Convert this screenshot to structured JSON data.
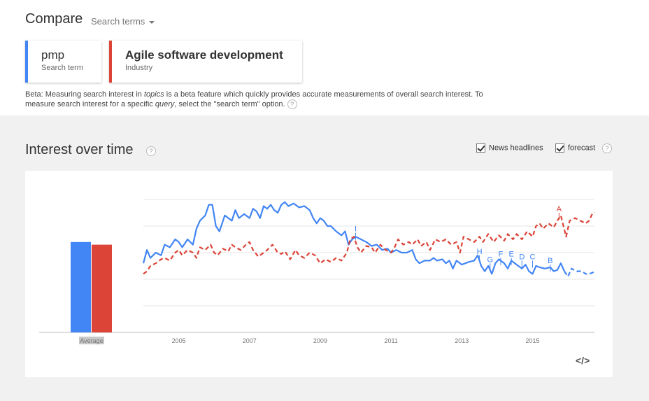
{
  "header": {
    "title": "Compare",
    "search_terms_label": "Search terms"
  },
  "terms": [
    {
      "name": "pmp",
      "type": "Search term",
      "color": "#4285f4"
    },
    {
      "name": "Agile software development",
      "type": "Industry",
      "color": "#db4437"
    }
  ],
  "beta_note": {
    "part1": "Beta: Measuring search interest in ",
    "em1": "topics",
    "part2": " is a beta feature which quickly provides accurate measurements of overall search interest. To measure search interest for a specific ",
    "em2": "query",
    "part3": ", select the \"search term\" option."
  },
  "section": {
    "title": "Interest over time",
    "news_headlines_label": "News headlines",
    "news_headlines_checked": true,
    "forecast_label": "forecast",
    "forecast_checked": true,
    "help_glyph": "?"
  },
  "chart_data": {
    "type": "line",
    "x_range": [
      2004.0,
      2016.75
    ],
    "y_range": [
      0,
      100
    ],
    "x_ticks": [
      "2005",
      "2007",
      "2009",
      "2011",
      "2013",
      "2015"
    ],
    "average": {
      "label": "Average",
      "values": [
        68,
        66
      ]
    },
    "series": [
      {
        "color": "#4285f4",
        "forecast_from": 2015.9,
        "points": [
          [
            2004.0,
            52
          ],
          [
            2004.1,
            62
          ],
          [
            2004.2,
            56
          ],
          [
            2004.35,
            60
          ],
          [
            2004.5,
            58
          ],
          [
            2004.6,
            66
          ],
          [
            2004.75,
            64
          ],
          [
            2004.9,
            70
          ],
          [
            2005.0,
            68
          ],
          [
            2005.1,
            64
          ],
          [
            2005.25,
            70
          ],
          [
            2005.4,
            66
          ],
          [
            2005.5,
            78
          ],
          [
            2005.6,
            84
          ],
          [
            2005.75,
            88
          ],
          [
            2005.85,
            96
          ],
          [
            2005.95,
            96
          ],
          [
            2006.05,
            80
          ],
          [
            2006.15,
            76
          ],
          [
            2006.3,
            88
          ],
          [
            2006.4,
            86
          ],
          [
            2006.5,
            84
          ],
          [
            2006.6,
            92
          ],
          [
            2006.7,
            86
          ],
          [
            2006.85,
            89
          ],
          [
            2007.0,
            86
          ],
          [
            2007.1,
            93
          ],
          [
            2007.2,
            91
          ],
          [
            2007.3,
            86
          ],
          [
            2007.4,
            95
          ],
          [
            2007.5,
            93
          ],
          [
            2007.6,
            96
          ],
          [
            2007.7,
            92
          ],
          [
            2007.8,
            90
          ],
          [
            2007.9,
            96
          ],
          [
            2008.0,
            98
          ],
          [
            2008.1,
            95
          ],
          [
            2008.25,
            97
          ],
          [
            2008.4,
            94
          ],
          [
            2008.55,
            95
          ],
          [
            2008.7,
            92
          ],
          [
            2008.8,
            86
          ],
          [
            2008.9,
            82
          ],
          [
            2009.0,
            86
          ],
          [
            2009.1,
            84
          ],
          [
            2009.2,
            80
          ],
          [
            2009.3,
            80
          ],
          [
            2009.45,
            76
          ],
          [
            2009.6,
            73
          ],
          [
            2009.7,
            76
          ],
          [
            2009.8,
            66
          ],
          [
            2009.9,
            70
          ],
          [
            2010.0,
            72
          ],
          [
            2010.15,
            70
          ],
          [
            2010.3,
            68
          ],
          [
            2010.45,
            65
          ],
          [
            2010.6,
            66
          ],
          [
            2010.75,
            62
          ],
          [
            2010.9,
            63
          ],
          [
            2011.0,
            60
          ],
          [
            2011.15,
            62
          ],
          [
            2011.3,
            60
          ],
          [
            2011.45,
            60
          ],
          [
            2011.6,
            62
          ],
          [
            2011.7,
            55
          ],
          [
            2011.8,
            52
          ],
          [
            2011.95,
            54
          ],
          [
            2012.1,
            54
          ],
          [
            2012.2,
            56
          ],
          [
            2012.3,
            54
          ],
          [
            2012.45,
            55
          ],
          [
            2012.55,
            52
          ],
          [
            2012.65,
            54
          ],
          [
            2012.75,
            48
          ],
          [
            2012.85,
            54
          ],
          [
            2013.0,
            51
          ],
          [
            2013.1,
            52
          ],
          [
            2013.2,
            53
          ],
          [
            2013.35,
            54
          ],
          [
            2013.45,
            58
          ],
          [
            2013.55,
            50
          ],
          [
            2013.65,
            46
          ],
          [
            2013.75,
            50
          ],
          [
            2013.85,
            44
          ],
          [
            2013.95,
            52
          ],
          [
            2014.05,
            55
          ],
          [
            2014.2,
            52
          ],
          [
            2014.3,
            48
          ],
          [
            2014.4,
            54
          ],
          [
            2014.5,
            52
          ],
          [
            2014.6,
            50
          ],
          [
            2014.7,
            48
          ],
          [
            2014.8,
            51
          ],
          [
            2014.9,
            46
          ],
          [
            2015.0,
            44
          ],
          [
            2015.1,
            50
          ],
          [
            2015.2,
            49
          ],
          [
            2015.35,
            48
          ],
          [
            2015.5,
            49
          ],
          [
            2015.6,
            46
          ],
          [
            2015.7,
            47
          ],
          [
            2015.8,
            52
          ],
          [
            2015.9,
            46
          ],
          [
            2016.0,
            42
          ],
          [
            2016.1,
            48
          ],
          [
            2016.25,
            46
          ],
          [
            2016.4,
            46
          ],
          [
            2016.5,
            44
          ],
          [
            2016.6,
            44
          ],
          [
            2016.7,
            45
          ],
          [
            2016.75,
            46
          ]
        ]
      },
      {
        "color": "#db4437",
        "forecast_from": 2004.0,
        "points": [
          [
            2004.0,
            44
          ],
          [
            2004.1,
            46
          ],
          [
            2004.2,
            50
          ],
          [
            2004.35,
            52
          ],
          [
            2004.5,
            55
          ],
          [
            2004.6,
            56
          ],
          [
            2004.75,
            54
          ],
          [
            2004.9,
            60
          ],
          [
            2005.0,
            62
          ],
          [
            2005.1,
            58
          ],
          [
            2005.25,
            62
          ],
          [
            2005.4,
            60
          ],
          [
            2005.5,
            56
          ],
          [
            2005.6,
            64
          ],
          [
            2005.75,
            62
          ],
          [
            2005.9,
            66
          ],
          [
            2006.0,
            60
          ],
          [
            2006.1,
            58
          ],
          [
            2006.25,
            63
          ],
          [
            2006.4,
            61
          ],
          [
            2006.5,
            66
          ],
          [
            2006.6,
            64
          ],
          [
            2006.75,
            62
          ],
          [
            2006.9,
            66
          ],
          [
            2007.0,
            68
          ],
          [
            2007.1,
            62
          ],
          [
            2007.25,
            57
          ],
          [
            2007.4,
            60
          ],
          [
            2007.5,
            62
          ],
          [
            2007.65,
            66
          ],
          [
            2007.8,
            60
          ],
          [
            2007.9,
            59
          ],
          [
            2008.0,
            61
          ],
          [
            2008.15,
            55
          ],
          [
            2008.3,
            62
          ],
          [
            2008.4,
            58
          ],
          [
            2008.55,
            56
          ],
          [
            2008.7,
            60
          ],
          [
            2008.85,
            58
          ],
          [
            2009.0,
            52
          ],
          [
            2009.15,
            55
          ],
          [
            2009.3,
            53
          ],
          [
            2009.45,
            56
          ],
          [
            2009.6,
            54
          ],
          [
            2009.75,
            60
          ],
          [
            2009.85,
            70
          ],
          [
            2009.95,
            72
          ],
          [
            2010.05,
            64
          ],
          [
            2010.15,
            60
          ],
          [
            2010.3,
            65
          ],
          [
            2010.45,
            64
          ],
          [
            2010.55,
            60
          ],
          [
            2010.7,
            66
          ],
          [
            2010.85,
            62
          ],
          [
            2011.0,
            60
          ],
          [
            2011.1,
            64
          ],
          [
            2011.2,
            70
          ],
          [
            2011.35,
            66
          ],
          [
            2011.5,
            68
          ],
          [
            2011.6,
            66
          ],
          [
            2011.75,
            70
          ],
          [
            2011.85,
            65
          ],
          [
            2012.0,
            68
          ],
          [
            2012.1,
            62
          ],
          [
            2012.25,
            70
          ],
          [
            2012.4,
            68
          ],
          [
            2012.55,
            70
          ],
          [
            2012.7,
            66
          ],
          [
            2012.85,
            68
          ],
          [
            2012.95,
            60
          ],
          [
            2013.05,
            72
          ],
          [
            2013.2,
            70
          ],
          [
            2013.35,
            68
          ],
          [
            2013.5,
            72
          ],
          [
            2013.6,
            68
          ],
          [
            2013.75,
            74
          ],
          [
            2013.9,
            68
          ],
          [
            2014.05,
            73
          ],
          [
            2014.2,
            69
          ],
          [
            2014.3,
            74
          ],
          [
            2014.45,
            70
          ],
          [
            2014.55,
            74
          ],
          [
            2014.7,
            70
          ],
          [
            2014.85,
            76
          ],
          [
            2015.0,
            72
          ],
          [
            2015.1,
            80
          ],
          [
            2015.2,
            82
          ],
          [
            2015.3,
            78
          ],
          [
            2015.45,
            82
          ],
          [
            2015.6,
            79
          ],
          [
            2015.7,
            84
          ],
          [
            2015.8,
            88
          ],
          [
            2015.95,
            72
          ],
          [
            2016.05,
            84
          ],
          [
            2016.2,
            86
          ],
          [
            2016.35,
            84
          ],
          [
            2016.5,
            82
          ],
          [
            2016.6,
            84
          ],
          [
            2016.7,
            90
          ],
          [
            2016.75,
            90
          ]
        ]
      }
    ],
    "annotations": [
      {
        "label": "A",
        "x": 2015.75,
        "y": 91,
        "color": "#db4437"
      },
      {
        "label": "B",
        "x": 2015.5,
        "y": 52,
        "color": "#4285f4"
      },
      {
        "label": "C",
        "x": 2015.0,
        "y": 55,
        "color": "#4285f4"
      },
      {
        "label": "D",
        "x": 2014.7,
        "y": 55,
        "color": "#4285f4"
      },
      {
        "label": "E",
        "x": 2014.4,
        "y": 57,
        "color": "#4285f4"
      },
      {
        "label": "F",
        "x": 2014.1,
        "y": 57,
        "color": "#4285f4"
      },
      {
        "label": "G",
        "x": 2013.8,
        "y": 53,
        "color": "#4285f4"
      },
      {
        "label": "H",
        "x": 2013.5,
        "y": 59,
        "color": "#4285f4"
      },
      {
        "label": "I",
        "x": 2010.0,
        "y": 76,
        "color": "#4285f4"
      }
    ]
  },
  "embed_label": "</>"
}
